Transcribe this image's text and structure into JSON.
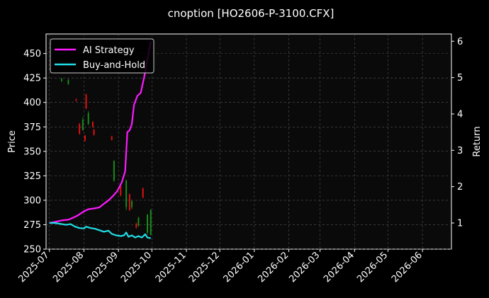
{
  "chart_data": {
    "type": "candlestick_line",
    "title": "cnoption [HO2606-P-3100.CFX]",
    "ylabel_left": "Price",
    "ylabel_right": "Return",
    "xlim": [
      "2025-06-28",
      "2026-06-27"
    ],
    "ylim_left": [
      250,
      470
    ],
    "ylim_right": [
      0.28,
      6.2
    ],
    "x_ticks": [
      "2025-07",
      "2025-08",
      "2025-09",
      "2025-10",
      "2025-11",
      "2025-12",
      "2026-01",
      "2026-02",
      "2026-03",
      "2026-04",
      "2026-05",
      "2026-06"
    ],
    "y_ticks_left": [
      250,
      275,
      300,
      325,
      350,
      375,
      400,
      425,
      450
    ],
    "y_ticks_right": [
      1,
      2,
      3,
      4,
      5,
      6
    ],
    "grid": true,
    "legend_position": "upper-left",
    "colors": {
      "background": "#000000",
      "plot_background": "#0a0a0a",
      "text": "#ffffff",
      "grid": "#555555",
      "up": "#1a8a1a",
      "down": "#e01010",
      "ai_strategy": "#ff19ff",
      "buy_and_hold": "#22dde6"
    },
    "candles": [
      {
        "x": "2025-07-12",
        "open": 422,
        "close": 424,
        "high": 425,
        "low": 421
      },
      {
        "x": "2025-07-18",
        "open": 419,
        "close": 423,
        "high": 424,
        "low": 418
      },
      {
        "x": "2025-07-25",
        "open": 403,
        "close": 402,
        "high": 404,
        "low": 401
      },
      {
        "x": "2025-07-28",
        "open": 378,
        "close": 368,
        "high": 379,
        "low": 367
      },
      {
        "x": "2025-07-31",
        "open": 372,
        "close": 382,
        "high": 385,
        "low": 371
      },
      {
        "x": "2025-08-02",
        "open": 366,
        "close": 361,
        "high": 367,
        "low": 360
      },
      {
        "x": "2025-08-03",
        "open": 408,
        "close": 394,
        "high": 409,
        "low": 393
      },
      {
        "x": "2025-08-05",
        "open": 378,
        "close": 389,
        "high": 391,
        "low": 377
      },
      {
        "x": "2025-08-09",
        "open": 380,
        "close": 375,
        "high": 381,
        "low": 374
      },
      {
        "x": "2025-08-10",
        "open": 372,
        "close": 367,
        "high": 373,
        "low": 366
      },
      {
        "x": "2025-08-26",
        "open": 365,
        "close": 362,
        "high": 366,
        "low": 361
      },
      {
        "x": "2025-08-28",
        "open": 320,
        "close": 340,
        "high": 341,
        "low": 319
      },
      {
        "x": "2025-09-03",
        "open": 314,
        "close": 305,
        "high": 315,
        "low": 304
      },
      {
        "x": "2025-09-08",
        "open": 293,
        "close": 320,
        "high": 321,
        "low": 290
      },
      {
        "x": "2025-09-11",
        "open": 306,
        "close": 290,
        "high": 307,
        "low": 289
      },
      {
        "x": "2025-09-13",
        "open": 293,
        "close": 299,
        "high": 300,
        "low": 291
      },
      {
        "x": "2025-09-17",
        "open": 276,
        "close": 272,
        "high": 277,
        "low": 271
      },
      {
        "x": "2025-09-19",
        "open": 274,
        "close": 282,
        "high": 283,
        "low": 273
      },
      {
        "x": "2025-09-23",
        "open": 312,
        "close": 303,
        "high": 313,
        "low": 302
      },
      {
        "x": "2025-09-27",
        "open": 267,
        "close": 285,
        "high": 286,
        "low": 265
      },
      {
        "x": "2025-09-30",
        "open": 265,
        "close": 290,
        "high": 291,
        "low": 264
      }
    ],
    "series": [
      {
        "name": "AI Strategy",
        "axis": "right",
        "points": [
          [
            "2025-07-01",
            1.0
          ],
          [
            "2025-07-06",
            1.03
          ],
          [
            "2025-07-12",
            1.07
          ],
          [
            "2025-07-18",
            1.09
          ],
          [
            "2025-07-22",
            1.14
          ],
          [
            "2025-07-26",
            1.2
          ],
          [
            "2025-08-01",
            1.32
          ],
          [
            "2025-08-05",
            1.38
          ],
          [
            "2025-08-10",
            1.4
          ],
          [
            "2025-08-15",
            1.43
          ],
          [
            "2025-08-19",
            1.53
          ],
          [
            "2025-08-23",
            1.62
          ],
          [
            "2025-08-27",
            1.74
          ],
          [
            "2025-08-31",
            1.88
          ],
          [
            "2025-09-04",
            2.12
          ],
          [
            "2025-09-07",
            2.42
          ],
          [
            "2025-09-09",
            3.5
          ],
          [
            "2025-09-11",
            3.55
          ],
          [
            "2025-09-13",
            3.72
          ],
          [
            "2025-09-15",
            4.25
          ],
          [
            "2025-09-18",
            4.5
          ],
          [
            "2025-09-21",
            4.58
          ],
          [
            "2025-09-24",
            5.0
          ],
          [
            "2025-09-27",
            5.5
          ],
          [
            "2025-09-30",
            6.0
          ]
        ]
      },
      {
        "name": "Buy-and-Hold",
        "axis": "right",
        "points": [
          [
            "2025-07-01",
            1.0
          ],
          [
            "2025-07-06",
            1.0
          ],
          [
            "2025-07-12",
            0.97
          ],
          [
            "2025-07-16",
            0.95
          ],
          [
            "2025-07-20",
            0.97
          ],
          [
            "2025-07-24",
            0.9
          ],
          [
            "2025-07-28",
            0.86
          ],
          [
            "2025-08-01",
            0.85
          ],
          [
            "2025-08-03",
            0.9
          ],
          [
            "2025-08-07",
            0.86
          ],
          [
            "2025-08-11",
            0.84
          ],
          [
            "2025-08-15",
            0.8
          ],
          [
            "2025-08-19",
            0.76
          ],
          [
            "2025-08-23",
            0.79
          ],
          [
            "2025-08-26",
            0.7
          ],
          [
            "2025-08-30",
            0.66
          ],
          [
            "2025-09-03",
            0.64
          ],
          [
            "2025-09-06",
            0.66
          ],
          [
            "2025-09-08",
            0.74
          ],
          [
            "2025-09-10",
            0.62
          ],
          [
            "2025-09-13",
            0.66
          ],
          [
            "2025-09-16",
            0.6
          ],
          [
            "2025-09-19",
            0.64
          ],
          [
            "2025-09-22",
            0.6
          ],
          [
            "2025-09-25",
            0.69
          ],
          [
            "2025-09-27",
            0.6
          ],
          [
            "2025-09-30",
            0.58
          ]
        ]
      }
    ]
  }
}
